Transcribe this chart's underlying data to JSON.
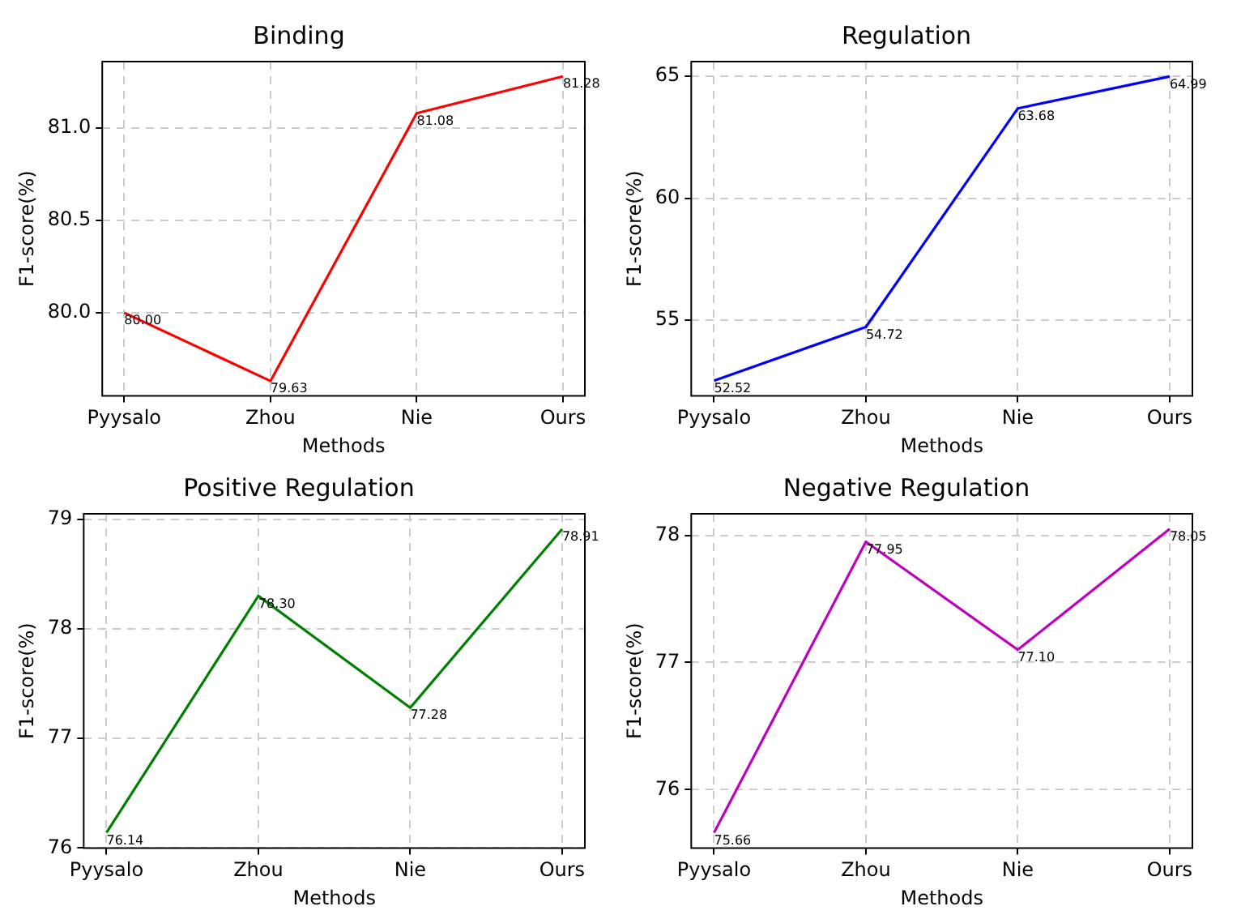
{
  "chart_data": [
    {
      "type": "line",
      "title": "Binding",
      "xlabel": "Methods",
      "ylabel": "F1-score(%)",
      "categories": [
        "Pyysalo",
        "Zhou",
        "Nie",
        "Ours"
      ],
      "series": [
        {
          "color": "#ff0000",
          "values": [
            80.0,
            79.63,
            81.08,
            81.28
          ],
          "value_labels": [
            "80.00",
            "79.63",
            "81.08",
            "81.28"
          ]
        }
      ],
      "ylim": [
        79.55,
        81.36
      ],
      "yticks": [
        {
          "value": 80,
          "label": "80.0"
        },
        {
          "value": 80.5,
          "label": "80.5"
        },
        {
          "value": 81,
          "label": "81.0"
        }
      ],
      "grid": true,
      "line_style": "solid"
    },
    {
      "type": "line",
      "title": "Regulation",
      "xlabel": "Methods",
      "ylabel": "F1-score(%)",
      "categories": [
        "Pyysalo",
        "Zhou",
        "Nie",
        "Ours"
      ],
      "series": [
        {
          "color": "#0000ff",
          "values": [
            52.52,
            54.72,
            63.68,
            64.99
          ],
          "value_labels": [
            "52.52",
            "54.72",
            "63.68",
            "64.99"
          ]
        }
      ],
      "ylim": [
        51.9,
        65.6
      ],
      "yticks": [
        55,
        60,
        65
      ],
      "grid": true,
      "line_style": "solid"
    },
    {
      "type": "line",
      "title": "Positive Regulation",
      "xlabel": "Methods",
      "ylabel": "F1-score(%)",
      "categories": [
        "Pyysalo",
        "Zhou",
        "Nie",
        "Ours"
      ],
      "series": [
        {
          "color": "#008000",
          "values": [
            76.14,
            78.3,
            77.28,
            78.91
          ],
          "value_labels": [
            "76.14",
            "78.30",
            "77.28",
            "78.91"
          ]
        }
      ],
      "ylim": [
        76.0,
        79.05
      ],
      "yticks": [
        76,
        77,
        78,
        79
      ],
      "grid": true,
      "line_style": "solid"
    },
    {
      "type": "line",
      "title": "Negative Regulation",
      "xlabel": "Methods",
      "ylabel": "F1-score(%)",
      "categories": [
        "Pyysalo",
        "Zhou",
        "Nie",
        "Ours"
      ],
      "series": [
        {
          "color": "#bf00bf",
          "values": [
            75.66,
            77.95,
            77.1,
            78.05
          ],
          "value_labels": [
            "75.66",
            "77.95",
            "77.10",
            "78.05"
          ]
        }
      ],
      "ylim": [
        75.54,
        78.17
      ],
      "yticks": [
        76,
        77,
        78
      ],
      "grid": true,
      "line_style": "solid"
    }
  ]
}
